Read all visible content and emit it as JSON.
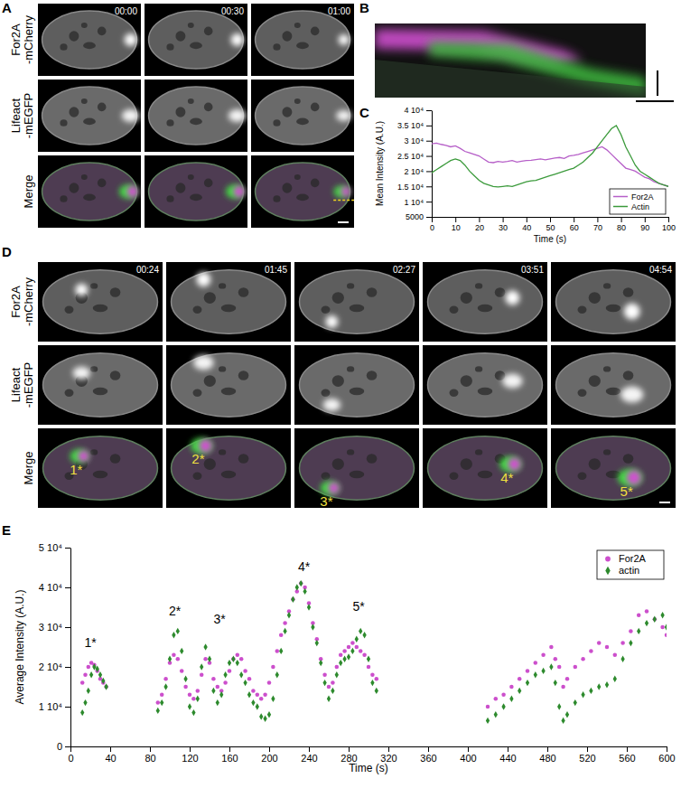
{
  "panels": {
    "labels": [
      "A",
      "B",
      "C",
      "D",
      "E"
    ],
    "A": {
      "rows": [
        [
          "For2A",
          "-mCherry"
        ],
        [
          "Lifeact",
          "-mEGFP"
        ],
        [
          "Merge"
        ]
      ],
      "times": [
        "00:00",
        "00:30",
        "01:00"
      ]
    },
    "D": {
      "rows": [
        [
          "For2A",
          "-mCherry"
        ],
        [
          "Lifeact",
          "-mEGFP"
        ],
        [
          "Merge"
        ]
      ],
      "times": [
        "00:24",
        "01:45",
        "02:27",
        "03:51",
        "04:54"
      ],
      "markers": [
        "1*",
        "2*",
        "3*",
        "4*",
        "5*"
      ]
    }
  },
  "chart_data": [
    {
      "type": "line",
      "x_label": "Time (s)",
      "y_label": "Mean Intensity (A.U.)",
      "x": [
        0,
        2,
        4,
        6,
        8,
        10,
        12,
        14,
        16,
        18,
        20,
        22,
        24,
        26,
        28,
        30,
        32,
        34,
        36,
        38,
        40,
        42,
        44,
        46,
        48,
        50,
        52,
        54,
        56,
        58,
        60,
        62,
        64,
        66,
        68,
        70,
        72,
        74,
        76,
        78,
        80,
        82,
        84,
        86,
        88,
        90,
        92,
        94,
        96,
        98,
        100
      ],
      "xlim": [
        0,
        100
      ],
      "xticks": [
        0,
        10,
        20,
        30,
        40,
        50,
        60,
        70,
        80,
        90,
        100
      ],
      "ylim": [
        5000,
        40000
      ],
      "yticks": [
        5000,
        {
          "value": 10000,
          "label": "1 10⁴"
        },
        {
          "value": 15000,
          "label": "1.5 10⁴"
        },
        {
          "value": 20000,
          "label": "2 10⁴"
        },
        {
          "value": 25000,
          "label": "2.5 10⁴"
        },
        {
          "value": 30000,
          "label": "3 10⁴"
        },
        {
          "value": 35000,
          "label": "3.5 10⁴"
        },
        {
          "value": 40000,
          "label": "4 10⁴"
        }
      ],
      "legend": "lower right",
      "series": [
        {
          "name": "For2A",
          "color": "#b65fc8",
          "values": [
            29000,
            29200,
            28800,
            28500,
            28000,
            28300,
            27500,
            26500,
            26000,
            25500,
            25000,
            24000,
            23000,
            22800,
            23200,
            23000,
            23200,
            23500,
            23000,
            23300,
            23500,
            23600,
            23800,
            24000,
            23700,
            24000,
            24300,
            24500,
            24200,
            25000,
            25200,
            25500,
            26000,
            26500,
            27000,
            27500,
            28000,
            27000,
            25500,
            24000,
            22500,
            21000,
            20500,
            20000,
            19000,
            18000,
            17500,
            16500,
            16000,
            15500,
            15000
          ]
        },
        {
          "name": "Actin",
          "color": "#3b9a3b",
          "values": [
            19500,
            20500,
            21500,
            22500,
            23500,
            24000,
            23500,
            22000,
            20000,
            18500,
            17000,
            16000,
            15500,
            15000,
            14800,
            15000,
            15200,
            15000,
            15500,
            16000,
            16500,
            16800,
            17000,
            17500,
            18000,
            18500,
            19000,
            19500,
            20000,
            20500,
            21000,
            22000,
            23000,
            24500,
            26000,
            28000,
            30000,
            32000,
            34000,
            35000,
            32000,
            28000,
            25000,
            22000,
            20000,
            19000,
            18000,
            17000,
            16000,
            15500,
            15000
          ]
        }
      ]
    },
    {
      "type": "scatter",
      "x_label": "Time (s)",
      "y_label": "Average Intensity (A.U.)",
      "x": [
        12,
        15,
        18,
        21,
        24,
        27,
        30,
        33,
        36,
        88,
        92,
        96,
        100,
        104,
        108,
        112,
        116,
        120,
        124,
        128,
        132,
        136,
        140,
        144,
        148,
        152,
        156,
        160,
        164,
        168,
        172,
        176,
        180,
        184,
        188,
        192,
        196,
        200,
        204,
        208,
        212,
        216,
        220,
        224,
        228,
        232,
        236,
        240,
        244,
        248,
        252,
        256,
        260,
        264,
        268,
        272,
        276,
        280,
        284,
        288,
        292,
        296,
        300,
        304,
        308,
        420,
        428,
        436,
        444,
        452,
        460,
        468,
        476,
        484,
        488,
        492,
        496,
        500,
        508,
        516,
        524,
        532,
        540,
        548,
        556,
        564,
        572,
        580,
        588,
        596,
        600
      ],
      "xlim": [
        0,
        600
      ],
      "xticks": [
        0,
        40,
        80,
        120,
        160,
        200,
        240,
        280,
        320,
        360,
        400,
        440,
        480,
        520,
        560,
        600
      ],
      "ylim": [
        0,
        50000
      ],
      "yticks": [
        0,
        {
          "value": 10000,
          "label": "1 10⁴"
        },
        {
          "value": 20000,
          "label": "2 10⁴"
        },
        {
          "value": 30000,
          "label": "3 10⁴"
        },
        {
          "value": 40000,
          "label": "4 10⁴"
        },
        {
          "value": 50000,
          "label": "5 10⁴"
        }
      ],
      "legend": "upper right",
      "series": [
        {
          "name": "For2A",
          "color": "#cc4fcc",
          "marker": "circle",
          "values": [
            16000,
            18000,
            20000,
            21000,
            20500,
            19000,
            17000,
            16000,
            15000,
            11000,
            13000,
            17000,
            21000,
            23000,
            22000,
            19000,
            15000,
            13000,
            12000,
            14000,
            18000,
            22000,
            21000,
            17000,
            15000,
            14000,
            16000,
            19000,
            22000,
            23000,
            22000,
            19000,
            17000,
            14000,
            13000,
            12000,
            13000,
            16000,
            20000,
            24000,
            28000,
            31000,
            34000,
            37000,
            39000,
            41000,
            40000,
            36000,
            31000,
            27000,
            22000,
            18000,
            15000,
            16000,
            20000,
            23000,
            24000,
            25000,
            26000,
            25000,
            24000,
            23000,
            20000,
            18000,
            17000,
            10000,
            12000,
            13000,
            15000,
            17000,
            19000,
            21000,
            23000,
            25000,
            22000,
            20000,
            15000,
            17000,
            20000,
            22000,
            24000,
            26000,
            25000,
            23000,
            26000,
            29000,
            33000,
            34000,
            32000,
            30000,
            28000
          ]
        },
        {
          "name": "actin",
          "color": "#2d8a2d",
          "marker": "diamond",
          "values": [
            8500,
            11000,
            14000,
            18000,
            20000,
            19500,
            18000,
            16500,
            15000,
            9000,
            11000,
            15000,
            22000,
            28000,
            29000,
            24000,
            17000,
            10000,
            8500,
            12000,
            20000,
            25000,
            22000,
            14000,
            11000,
            13000,
            18000,
            21000,
            22000,
            21000,
            18000,
            16000,
            13000,
            11000,
            10000,
            7500,
            7000,
            8000,
            12000,
            18000,
            24000,
            29000,
            33000,
            37000,
            40000,
            41000,
            39000,
            35000,
            30000,
            26000,
            21000,
            16000,
            12000,
            14000,
            18000,
            21000,
            22000,
            22500,
            24000,
            27000,
            29000,
            28000,
            22000,
            16000,
            14000,
            6500,
            8000,
            10000,
            12000,
            14000,
            16000,
            18000,
            19000,
            20000,
            16000,
            10000,
            6500,
            8000,
            11000,
            13000,
            14000,
            15000,
            15500,
            17000,
            22000,
            26000,
            29000,
            31000,
            32000,
            33000,
            30000
          ]
        }
      ],
      "annotations": [
        {
          "text": "1*",
          "x": 20,
          "y": 25000
        },
        {
          "text": "2*",
          "x": 105,
          "y": 33000
        },
        {
          "text": "3*",
          "x": 150,
          "y": 31000
        },
        {
          "text": "4*",
          "x": 235,
          "y": 44000
        },
        {
          "text": "5*",
          "x": 290,
          "y": 34000
        }
      ]
    }
  ]
}
